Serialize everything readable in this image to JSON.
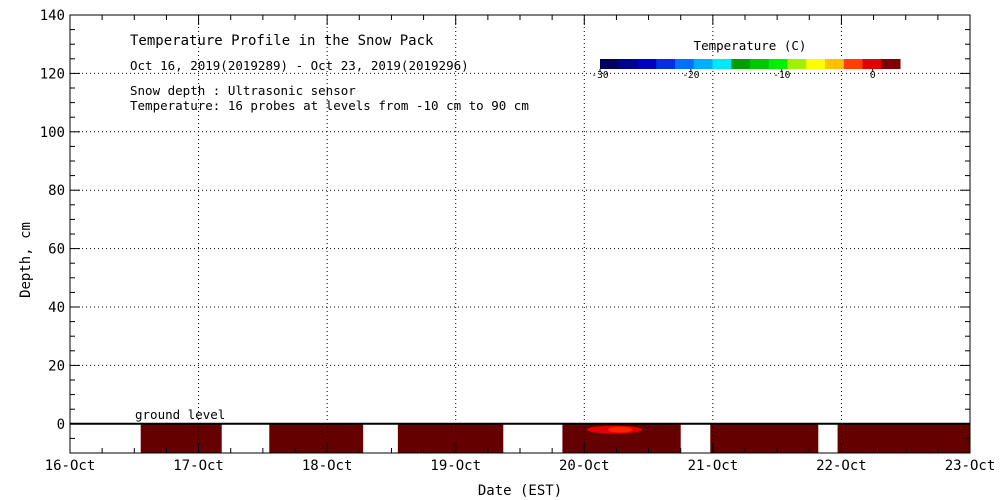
{
  "chart_data": {
    "type": "heatmap",
    "title": "Temperature Profile in the Snow Pack",
    "date_range": "Oct 16, 2019(2019289) - Oct 23, 2019(2019296)",
    "note_snow_depth": "Snow depth : Ultrasonic sensor",
    "note_temperature": "Temperature: 16 probes at levels from -10 cm to 90 cm",
    "xlabel": "Date (EST)",
    "ylabel": "Depth, cm",
    "ground_label": "ground level",
    "x_ticks": [
      "16-Oct",
      "17-Oct",
      "18-Oct",
      "19-Oct",
      "20-Oct",
      "21-Oct",
      "22-Oct",
      "23-Oct"
    ],
    "xlim_days": [
      0,
      7
    ],
    "ylim": [
      -10,
      140
    ],
    "y_ticks": [
      0,
      20,
      40,
      60,
      80,
      100,
      120,
      140
    ],
    "grid": true,
    "colorbar": {
      "title": "Temperature (C)",
      "range": [
        -30,
        3
      ],
      "tick_values": [
        -30,
        -20,
        -10,
        0
      ],
      "tick_labels": [
        "-30",
        "-20",
        "-10",
        "0"
      ],
      "colors": [
        "#000060",
        "#000090",
        "#0000c0",
        "#0030e0",
        "#0070ff",
        "#00b0ff",
        "#00e8ff",
        "#00a000",
        "#00c800",
        "#00f000",
        "#a0f000",
        "#ffff00",
        "#ffc000",
        "#ff4000",
        "#e00000",
        "#800000"
      ]
    },
    "ground_cell_color": "#640000",
    "ground_segments": [
      {
        "start_day": 0.03,
        "end_day": 0.0,
        "temperature": 3
      },
      {
        "start_day": 0.55,
        "end_day": 1.18,
        "temperature": 3
      },
      {
        "start_day": 1.55,
        "end_day": 2.28,
        "temperature": 3
      },
      {
        "start_day": 2.55,
        "end_day": 3.37,
        "temperature": 3
      },
      {
        "start_day": 3.83,
        "end_day": 4.75,
        "temperature": 3
      },
      {
        "start_day": 4.98,
        "end_day": 5.82,
        "temperature": 3
      },
      {
        "start_day": 5.97,
        "end_day": 7.0,
        "temperature": 3
      }
    ],
    "warm_spot": {
      "start_day": 4.02,
      "end_day": 4.45,
      "depth": -2,
      "temperature": 1
    }
  }
}
